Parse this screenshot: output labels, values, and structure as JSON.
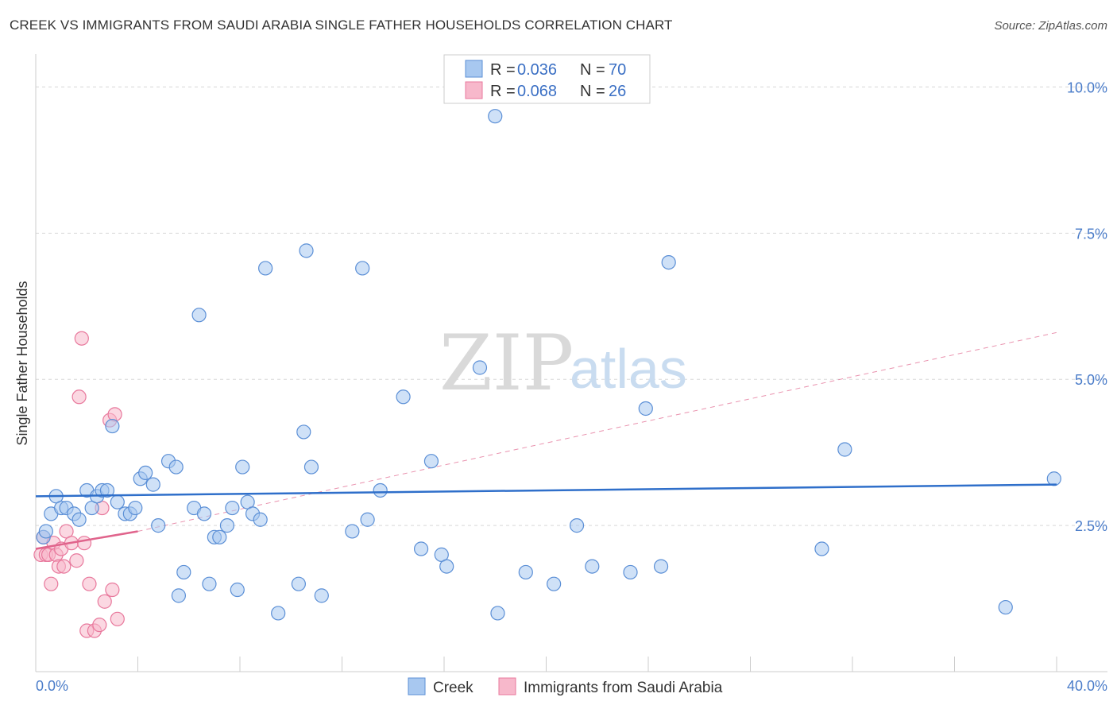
{
  "title": "CREEK VS IMMIGRANTS FROM SAUDI ARABIA SINGLE FATHER HOUSEHOLDS CORRELATION CHART",
  "source": "Source: ZipAtlas.com",
  "watermark": {
    "zip": "ZIP",
    "atlas": "atlas"
  },
  "colors": {
    "creek_fill": "#a8c8f0",
    "creek_stroke": "#5b8fd6",
    "creek_line": "#2f6fca",
    "saudi_fill": "#f7b8cb",
    "saudi_stroke": "#e8789c",
    "saudi_line": "#e0648c",
    "grid": "#d8d8d8",
    "tick_text": "#4a7cc9"
  },
  "legend": {
    "rows": [
      {
        "r_label": "R = ",
        "r_value": "0.036",
        "n_label": "N = ",
        "n_value": "70"
      },
      {
        "r_label": "R = ",
        "r_value": "0.068",
        "n_label": "N = ",
        "n_value": "26"
      }
    ]
  },
  "bottom_legend": {
    "creek": "Creek",
    "saudi": "Immigrants from Saudi Arabia"
  },
  "chart_data": {
    "type": "scatter",
    "title": "CREEK VS IMMIGRANTS FROM SAUDI ARABIA SINGLE FATHER HOUSEHOLDS CORRELATION CHART",
    "xlabel": "",
    "ylabel": "Single Father Households",
    "xlim": [
      0,
      40
    ],
    "ylim": [
      0,
      10.4
    ],
    "x_tick_labels": [
      "0.0%",
      "40.0%"
    ],
    "y_ticks": [
      2.5,
      5.0,
      7.5,
      10.0
    ],
    "y_tick_labels": [
      "2.5%",
      "5.0%",
      "7.5%",
      "10.0%"
    ],
    "series": [
      {
        "name": "Creek",
        "r": 0.036,
        "n": 70,
        "trend": {
          "x": [
            0,
            40
          ],
          "y": [
            3.0,
            3.2
          ]
        },
        "points": [
          [
            0.3,
            2.3
          ],
          [
            0.4,
            2.4
          ],
          [
            0.6,
            2.7
          ],
          [
            0.8,
            3.0
          ],
          [
            1.0,
            2.8
          ],
          [
            1.2,
            2.8
          ],
          [
            1.5,
            2.7
          ],
          [
            1.7,
            2.6
          ],
          [
            2.0,
            3.1
          ],
          [
            2.2,
            2.8
          ],
          [
            2.4,
            3.0
          ],
          [
            2.6,
            3.1
          ],
          [
            2.8,
            3.1
          ],
          [
            3.0,
            4.2
          ],
          [
            3.2,
            2.9
          ],
          [
            3.5,
            2.7
          ],
          [
            3.7,
            2.7
          ],
          [
            3.9,
            2.8
          ],
          [
            4.1,
            3.3
          ],
          [
            4.3,
            3.4
          ],
          [
            4.6,
            3.2
          ],
          [
            4.8,
            2.5
          ],
          [
            5.2,
            3.6
          ],
          [
            5.5,
            3.5
          ],
          [
            5.8,
            1.7
          ],
          [
            5.6,
            1.3
          ],
          [
            6.2,
            2.8
          ],
          [
            6.4,
            6.1
          ],
          [
            6.6,
            2.7
          ],
          [
            6.8,
            1.5
          ],
          [
            7.0,
            2.3
          ],
          [
            7.2,
            2.3
          ],
          [
            7.5,
            2.5
          ],
          [
            7.7,
            2.8
          ],
          [
            7.9,
            1.4
          ],
          [
            8.1,
            3.5
          ],
          [
            8.3,
            2.9
          ],
          [
            8.5,
            2.7
          ],
          [
            8.8,
            2.6
          ],
          [
            9.0,
            6.9
          ],
          [
            9.5,
            1.0
          ],
          [
            10.3,
            1.5
          ],
          [
            10.5,
            4.1
          ],
          [
            10.6,
            7.2
          ],
          [
            10.8,
            3.5
          ],
          [
            11.2,
            1.3
          ],
          [
            12.4,
            2.4
          ],
          [
            12.8,
            6.9
          ],
          [
            13.0,
            2.6
          ],
          [
            13.5,
            3.1
          ],
          [
            14.4,
            4.7
          ],
          [
            15.1,
            2.1
          ],
          [
            15.5,
            3.6
          ],
          [
            15.9,
            2.0
          ],
          [
            16.1,
            1.8
          ],
          [
            17.4,
            5.2
          ],
          [
            18.1,
            1.0
          ],
          [
            19.2,
            1.7
          ],
          [
            20.3,
            1.5
          ],
          [
            21.2,
            2.5
          ],
          [
            21.8,
            1.8
          ],
          [
            23.3,
            1.7
          ],
          [
            23.9,
            4.5
          ],
          [
            24.5,
            1.8
          ],
          [
            24.8,
            7.0
          ],
          [
            30.8,
            2.1
          ],
          [
            31.7,
            3.8
          ],
          [
            38.0,
            1.1
          ],
          [
            39.9,
            3.3
          ],
          [
            18.0,
            9.5
          ]
        ]
      },
      {
        "name": "Immigrants from Saudi Arabia",
        "r": 0.068,
        "n": 26,
        "trend": {
          "x": [
            0,
            4
          ],
          "y": [
            2.1,
            2.4
          ]
        },
        "trend_extension": {
          "x": [
            4,
            40
          ],
          "y": [
            2.4,
            5.8
          ]
        },
        "points": [
          [
            0.2,
            2.0
          ],
          [
            0.3,
            2.3
          ],
          [
            0.4,
            2.0
          ],
          [
            0.5,
            2.0
          ],
          [
            0.6,
            1.5
          ],
          [
            0.7,
            2.2
          ],
          [
            0.8,
            2.0
          ],
          [
            0.9,
            1.8
          ],
          [
            1.0,
            2.1
          ],
          [
            1.1,
            1.8
          ],
          [
            1.2,
            2.4
          ],
          [
            1.4,
            2.2
          ],
          [
            1.6,
            1.9
          ],
          [
            1.7,
            4.7
          ],
          [
            1.8,
            5.7
          ],
          [
            1.9,
            2.2
          ],
          [
            2.0,
            0.7
          ],
          [
            2.1,
            1.5
          ],
          [
            2.3,
            0.7
          ],
          [
            2.5,
            0.8
          ],
          [
            2.6,
            2.8
          ],
          [
            2.7,
            1.2
          ],
          [
            2.9,
            4.3
          ],
          [
            3.0,
            1.4
          ],
          [
            3.1,
            4.4
          ],
          [
            3.2,
            0.9
          ]
        ]
      }
    ]
  }
}
